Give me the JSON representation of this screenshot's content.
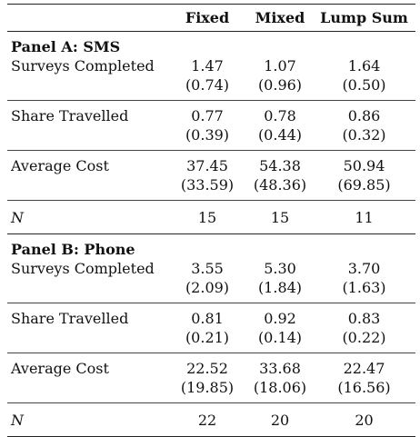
{
  "table": {
    "headers": [
      "",
      "Fixed",
      "Mixed",
      "Lump Sum"
    ],
    "panels": [
      {
        "title": "Panel A: SMS",
        "rows": [
          {
            "label": "Surveys Completed",
            "values": [
              "1.47",
              "1.07",
              "1.64"
            ],
            "se": [
              "(0.74)",
              "(0.96)",
              "(0.50)"
            ]
          },
          {
            "label": "Share Travelled",
            "values": [
              "0.77",
              "0.78",
              "0.86"
            ],
            "se": [
              "(0.39)",
              "(0.44)",
              "(0.32)"
            ]
          },
          {
            "label": "Average Cost",
            "values": [
              "37.45",
              "54.38",
              "50.94"
            ],
            "se": [
              "(33.59)",
              "(48.36)",
              "(69.85)"
            ]
          }
        ],
        "n_label": "N",
        "n_values": [
          "15",
          "15",
          "11"
        ]
      },
      {
        "title": "Panel B: Phone",
        "rows": [
          {
            "label": "Surveys Completed",
            "values": [
              "3.55",
              "5.30",
              "3.70"
            ],
            "se": [
              "(2.09)",
              "(1.84)",
              "(1.63)"
            ]
          },
          {
            "label": "Share Travelled",
            "values": [
              "0.81",
              "0.92",
              "0.83"
            ],
            "se": [
              "(0.21)",
              "(0.14)",
              "(0.22)"
            ]
          },
          {
            "label": "Average Cost",
            "values": [
              "22.52",
              "33.68",
              "22.47"
            ],
            "se": [
              "(19.85)",
              "(18.06)",
              "(16.56)"
            ]
          }
        ],
        "n_label": "N",
        "n_values": [
          "22",
          "20",
          "20"
        ]
      }
    ]
  }
}
